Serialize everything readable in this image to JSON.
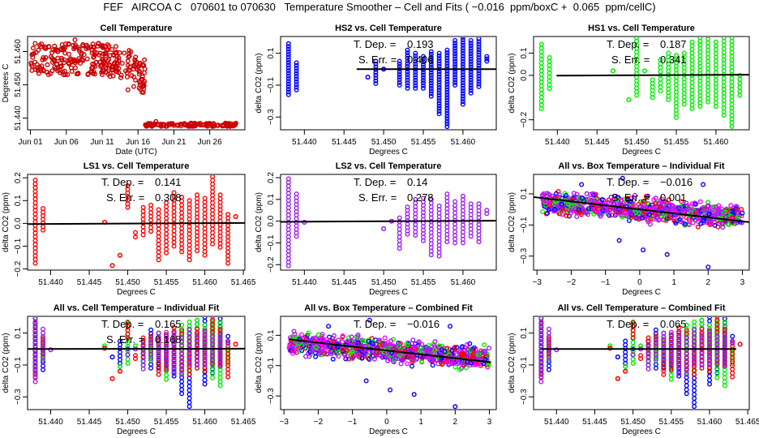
{
  "title": "FEF   AIRCOA C   070601 to 070630   Temperature Smoother – Cell and Fits ( −0.016  ppm/boxC +  0.065  ppm/cellC)",
  "colors": {
    "red": "#ff0000",
    "dark_red": "#cc0000",
    "blue": "#0000ff",
    "green": "#00ee00",
    "purple": "#a020f0",
    "magenta": "#ff00ff",
    "fit_line": "#000000"
  },
  "chart_data": [
    {
      "id": "cell-temperature",
      "type": "scatter",
      "title": "Cell Temperature",
      "xlabel": "Date (UTC)",
      "ylabel": "Degrees C",
      "x_ticks": [
        "Jun 01",
        "Jun 06",
        "Jun 11",
        "Jun 16",
        "Jun 21",
        "Jun 26"
      ],
      "x_tick_days": [
        1,
        6,
        11,
        16,
        21,
        26
      ],
      "xlim": [
        0.6,
        30.9
      ],
      "y_ticks": [
        "51.440",
        "51.450",
        "51.460"
      ],
      "y_tick_values": [
        51.44,
        51.45,
        51.46
      ],
      "ylim": [
        51.4365,
        51.4645
      ],
      "color": "red",
      "segments": [
        {
          "day_start": 1.0,
          "day_end": 16.0,
          "y_low": 51.453,
          "y_high": 51.4625,
          "trend": "flat-then-drop"
        },
        {
          "day_start": 16.0,
          "day_end": 17.0,
          "y_low": 51.4475,
          "y_high": 51.4575
        },
        {
          "day_start": 17.0,
          "day_end": 29.8,
          "y_low": 51.4375,
          "y_high": 51.4385
        }
      ],
      "outliers": [
        [
          14.6,
          51.4485
        ],
        [
          15.4,
          51.4495
        ],
        [
          12.1,
          51.4525
        ],
        [
          18.5,
          51.439
        ],
        [
          28.2,
          51.4385
        ],
        [
          7.2,
          51.4635
        ]
      ]
    },
    {
      "id": "hs2-vs-cell",
      "type": "scatter",
      "title": "HS2 vs. Cell Temperature",
      "xlabel": "Degrees C",
      "ylabel": "delta CO2 (ppm)",
      "x_ticks": [
        "51.440",
        "51.445",
        "51.450",
        "51.455",
        "51.460"
      ],
      "x_tick_values": [
        51.44,
        51.445,
        51.45,
        51.455,
        51.46
      ],
      "xlim": [
        51.437,
        51.4642
      ],
      "y_ticks": [
        "−0.3",
        "−0.1",
        "0.1"
      ],
      "y_tick_values": [
        -0.3,
        -0.1,
        0.1
      ],
      "ylim": [
        -0.38,
        0.205
      ],
      "color": "blue",
      "t_dep": "0.193",
      "s_err": "0.406",
      "fit": {
        "slope_label": "0.193",
        "x_range": [
          51.4466,
          51.4642
        ],
        "y_range": [
          0.0,
          0.0
        ]
      },
      "columns": [
        {
          "x": 51.438,
          "y_min": -0.16,
          "y_max": 0.16
        },
        {
          "x": 51.439,
          "y_min": -0.13,
          "y_max": 0.04
        },
        {
          "x": 51.448,
          "y_min": -0.05,
          "y_max": -0.05
        },
        {
          "x": 51.449,
          "y_min": -0.09,
          "y_max": 0.05
        },
        {
          "x": 51.45,
          "y_min": 0.0,
          "y_max": 0.0
        },
        {
          "x": 51.452,
          "y_min": -0.1,
          "y_max": 0.05
        },
        {
          "x": 51.453,
          "y_min": -0.12,
          "y_max": 0.12
        },
        {
          "x": 51.454,
          "y_min": -0.12,
          "y_max": 0.1
        },
        {
          "x": 51.455,
          "y_min": -0.12,
          "y_max": 0.08
        },
        {
          "x": 51.456,
          "y_min": -0.17,
          "y_max": 0.11
        },
        {
          "x": 51.457,
          "y_min": -0.28,
          "y_max": 0.1
        },
        {
          "x": 51.458,
          "y_min": -0.36,
          "y_max": 0.12
        },
        {
          "x": 51.459,
          "y_min": -0.1,
          "y_max": 0.18
        },
        {
          "x": 51.46,
          "y_min": -0.22,
          "y_max": 0.2
        },
        {
          "x": 51.461,
          "y_min": -0.15,
          "y_max": 0.18
        },
        {
          "x": 51.462,
          "y_min": -0.11,
          "y_max": 0.19
        },
        {
          "x": 51.463,
          "y_min": 0.05,
          "y_max": 0.08
        }
      ]
    },
    {
      "id": "hs1-vs-cell",
      "type": "scatter",
      "title": "HS1 vs. Cell Temperature",
      "xlabel": "Degrees C",
      "ylabel": "delta CO2 (ppm)",
      "x_ticks": [
        "51.440",
        "51.445",
        "51.450",
        "51.455",
        "51.460"
      ],
      "x_tick_values": [
        51.44,
        51.445,
        51.45,
        51.455,
        51.46
      ],
      "xlim": [
        51.437,
        51.4642
      ],
      "y_ticks": [
        "−0.2",
        "0.0",
        "0.1"
      ],
      "y_tick_values": [
        -0.2,
        0.0,
        0.1
      ],
      "ylim": [
        -0.245,
        0.175
      ],
      "color": "green",
      "t_dep": "0.187",
      "s_err": "0.341",
      "fit": {
        "slope_label": "0.187",
        "x_range": [
          51.4399,
          51.4642
        ],
        "y_range": [
          -0.001,
          0.003
        ]
      },
      "columns": [
        {
          "x": 51.438,
          "y_min": -0.15,
          "y_max": 0.14
        },
        {
          "x": 51.439,
          "y_min": -0.06,
          "y_max": 0.08
        },
        {
          "x": 51.447,
          "y_min": 0.02,
          "y_max": 0.02
        },
        {
          "x": 51.449,
          "y_min": -0.11,
          "y_max": -0.11
        },
        {
          "x": 51.45,
          "y_min": -0.09,
          "y_max": 0.17
        },
        {
          "x": 51.451,
          "y_min": 0.02,
          "y_max": 0.02
        },
        {
          "x": 51.452,
          "y_min": -0.1,
          "y_max": -0.02
        },
        {
          "x": 51.453,
          "y_min": -0.07,
          "y_max": 0.07
        },
        {
          "x": 51.454,
          "y_min": -0.11,
          "y_max": 0.1
        },
        {
          "x": 51.455,
          "y_min": -0.19,
          "y_max": 0.09
        },
        {
          "x": 51.456,
          "y_min": -0.13,
          "y_max": 0.1
        },
        {
          "x": 51.457,
          "y_min": -0.15,
          "y_max": 0.15
        },
        {
          "x": 51.458,
          "y_min": -0.14,
          "y_max": 0.17
        },
        {
          "x": 51.459,
          "y_min": -0.12,
          "y_max": 0.18
        },
        {
          "x": 51.46,
          "y_min": -0.14,
          "y_max": 0.15
        },
        {
          "x": 51.461,
          "y_min": -0.18,
          "y_max": 0.17
        },
        {
          "x": 51.462,
          "y_min": -0.23,
          "y_max": 0.17
        },
        {
          "x": 51.463,
          "y_min": -0.09,
          "y_max": 0.0
        }
      ]
    },
    {
      "id": "ls1-vs-cell",
      "type": "scatter",
      "title": "LS1 vs. Cell Temperature",
      "xlabel": "Degrees C",
      "ylabel": "delta CO2 (ppm)",
      "x_ticks": [
        "51.440",
        "51.445",
        "51.450",
        "51.455",
        "51.460",
        "51.465"
      ],
      "x_tick_values": [
        51.44,
        51.445,
        51.45,
        51.455,
        51.46,
        51.465
      ],
      "xlim": [
        51.437,
        51.4652
      ],
      "y_ticks": [
        "−0.2",
        "−0.1",
        "0.0",
        "0.1",
        "0.2"
      ],
      "y_tick_values": [
        -0.2,
        -0.1,
        0.0,
        0.1,
        0.2
      ],
      "ylim": [
        -0.205,
        0.215
      ],
      "color": "red",
      "t_dep": "0.141",
      "s_err": "0.308",
      "fit": {
        "slope_label": "0.141",
        "x_range": [
          51.437,
          51.4652
        ],
        "y_range": [
          -0.003,
          0.002
        ]
      },
      "columns": [
        {
          "x": 51.438,
          "y_min": -0.175,
          "y_max": 0.19
        },
        {
          "x": 51.439,
          "y_min": -0.03,
          "y_max": 0.065
        },
        {
          "x": 51.447,
          "y_min": 0.005,
          "y_max": 0.005
        },
        {
          "x": 51.448,
          "y_min": -0.185,
          "y_max": -0.185
        },
        {
          "x": 51.449,
          "y_min": -0.14,
          "y_max": -0.14
        },
        {
          "x": 51.45,
          "y_min": 0.07,
          "y_max": 0.165
        },
        {
          "x": 51.451,
          "y_min": -0.06,
          "y_max": -0.04
        },
        {
          "x": 51.452,
          "y_min": -0.05,
          "y_max": 0.07
        },
        {
          "x": 51.453,
          "y_min": -0.035,
          "y_max": 0.08
        },
        {
          "x": 51.454,
          "y_min": -0.16,
          "y_max": 0.06
        },
        {
          "x": 51.455,
          "y_min": -0.13,
          "y_max": 0.09
        },
        {
          "x": 51.456,
          "y_min": -0.1,
          "y_max": 0.135
        },
        {
          "x": 51.457,
          "y_min": -0.125,
          "y_max": 0.115
        },
        {
          "x": 51.458,
          "y_min": -0.16,
          "y_max": 0.1
        },
        {
          "x": 51.459,
          "y_min": -0.12,
          "y_max": 0.125
        },
        {
          "x": 51.46,
          "y_min": -0.14,
          "y_max": 0.11
        },
        {
          "x": 51.461,
          "y_min": -0.09,
          "y_max": 0.205
        },
        {
          "x": 51.462,
          "y_min": -0.105,
          "y_max": 0.125
        },
        {
          "x": 51.463,
          "y_min": -0.175,
          "y_max": 0.04
        },
        {
          "x": 51.464,
          "y_min": 0.03,
          "y_max": 0.03
        }
      ]
    },
    {
      "id": "ls2-vs-cell",
      "type": "scatter",
      "title": "LS2 vs. Cell Temperature",
      "xlabel": "Degrees C",
      "ylabel": "delta CO2 (ppm)",
      "x_ticks": [
        "51.440",
        "51.445",
        "51.450",
        "51.455",
        "51.460"
      ],
      "x_tick_values": [
        51.44,
        51.445,
        51.45,
        51.455,
        51.46
      ],
      "xlim": [
        51.437,
        51.4642
      ],
      "y_ticks": [
        "−0.2",
        "−0.1",
        "0.0",
        "0.1",
        "0.2"
      ],
      "y_tick_values": [
        -0.2,
        -0.1,
        0.0,
        0.1,
        0.2
      ],
      "ylim": [
        -0.225,
        0.215
      ],
      "color": "purple",
      "t_dep": "0.14",
      "s_err": "0.278",
      "fit": {
        "slope_label": "0.14",
        "x_range": [
          51.437,
          51.4642
        ],
        "y_range": [
          -0.003,
          0.002
        ]
      },
      "columns": [
        {
          "x": 51.438,
          "y_min": -0.205,
          "y_max": 0.195
        },
        {
          "x": 51.439,
          "y_min": -0.07,
          "y_max": 0.125
        },
        {
          "x": 51.44,
          "y_min": -0.005,
          "y_max": -0.005
        },
        {
          "x": 51.45,
          "y_min": -0.035,
          "y_max": -0.035
        },
        {
          "x": 51.451,
          "y_min": 0.0,
          "y_max": 0.0
        },
        {
          "x": 51.452,
          "y_min": -0.125,
          "y_max": 0.015
        },
        {
          "x": 51.453,
          "y_min": -0.06,
          "y_max": 0.065
        },
        {
          "x": 51.454,
          "y_min": -0.065,
          "y_max": 0.1
        },
        {
          "x": 51.455,
          "y_min": -0.09,
          "y_max": 0.105
        },
        {
          "x": 51.456,
          "y_min": -0.155,
          "y_max": 0.1
        },
        {
          "x": 51.457,
          "y_min": -0.16,
          "y_max": 0.07
        },
        {
          "x": 51.458,
          "y_min": -0.095,
          "y_max": 0.125
        },
        {
          "x": 51.459,
          "y_min": -0.1,
          "y_max": 0.09
        },
        {
          "x": 51.46,
          "y_min": -0.1,
          "y_max": 0.115
        },
        {
          "x": 51.461,
          "y_min": -0.07,
          "y_max": 0.08
        },
        {
          "x": 51.462,
          "y_min": -0.095,
          "y_max": 0.08
        },
        {
          "x": 51.463,
          "y_min": 0.035,
          "y_max": 0.05
        }
      ]
    },
    {
      "id": "all-vs-box-individual",
      "type": "scatter",
      "title": "All vs. Box Temperature – Individual Fit",
      "xlabel": "Degrees C",
      "ylabel": "delta CO2 (ppm)",
      "x_ticks": [
        "−3",
        "−2",
        "−1",
        "0",
        "1",
        "2",
        "3"
      ],
      "x_tick_values": [
        -3,
        -2,
        -1,
        0,
        1,
        2,
        3
      ],
      "xlim": [
        -3.1,
        3.2
      ],
      "y_ticks": [
        "−0.3",
        "−0.1",
        "0.1"
      ],
      "y_tick_values": [
        -0.3,
        -0.1,
        0.1
      ],
      "ylim": [
        -0.39,
        0.225
      ],
      "series_colors": [
        "blue",
        "green",
        "red",
        "purple"
      ],
      "t_dep": "−0.016",
      "s_err": "0.001",
      "fit": {
        "slope": -0.016,
        "intercept": 0.0,
        "x_range": [
          -3.1,
          3.2
        ]
      },
      "cloud": {
        "x_range": [
          -2.85,
          3.0
        ],
        "y_center_at_min_x": 0.045,
        "y_center_at_max_x": -0.05,
        "band_half_width": 0.08
      },
      "outliers": [
        [
          0.8,
          -0.29
        ],
        [
          2.0,
          -0.37
        ],
        [
          0.1,
          -0.26
        ],
        [
          -0.6,
          -0.2
        ],
        [
          1.85,
          0.16
        ],
        [
          -1.7,
          0.16
        ],
        [
          -0.5,
          0.2
        ]
      ]
    },
    {
      "id": "all-vs-cell-individual",
      "type": "scatter",
      "title": "All vs. Cell Temperature – Individual Fit",
      "xlabel": "Degrees C",
      "ylabel": "delta CO2 (ppm)",
      "x_ticks": [
        "51.440",
        "51.445",
        "51.450",
        "51.455",
        "51.460",
        "51.465"
      ],
      "x_tick_values": [
        51.44,
        51.445,
        51.45,
        51.455,
        51.46,
        51.465
      ],
      "xlim": [
        51.437,
        51.4652
      ],
      "y_ticks": [
        "−0.3",
        "−0.1",
        "0.1"
      ],
      "y_tick_values": [
        -0.3,
        -0.1,
        0.1
      ],
      "ylim": [
        -0.38,
        0.205
      ],
      "series_colors": [
        "blue",
        "green",
        "red",
        "purple"
      ],
      "t_dep": "0.165",
      "s_err": "0.168",
      "fit": {
        "slope_label": "0.165",
        "x_range": [
          51.437,
          51.4652
        ],
        "y_range": [
          0.0,
          0.002
        ]
      }
    },
    {
      "id": "all-vs-box-combined",
      "type": "scatter",
      "title": "All vs. Box Temperature – Combined Fit",
      "xlabel": "Degrees C",
      "ylabel": "delta CO2 (ppm)",
      "x_ticks": [
        "−3",
        "−2",
        "−1",
        "0",
        "1",
        "2",
        "3"
      ],
      "x_tick_values": [
        -3,
        -2,
        -1,
        0,
        1,
        2,
        3
      ],
      "xlim": [
        -3.1,
        3.2
      ],
      "y_ticks": [
        "−0.3",
        "−0.1",
        "0.1"
      ],
      "y_tick_values": [
        -0.3,
        -0.1,
        0.1
      ],
      "ylim": [
        -0.39,
        0.225
      ],
      "series_colors": [
        "blue",
        "green",
        "red",
        "purple"
      ],
      "t_dep": "−0.016",
      "fit": {
        "slope": -0.016,
        "intercept": 0.0,
        "x_range": [
          -2.85,
          3.05
        ]
      },
      "cloud": {
        "x_range": [
          -2.85,
          3.0
        ],
        "y_center_at_min_x": 0.045,
        "y_center_at_max_x": -0.05,
        "band_half_width": 0.08
      },
      "outliers": [
        [
          0.8,
          -0.29
        ],
        [
          2.0,
          -0.37
        ],
        [
          0.1,
          -0.26
        ],
        [
          -0.6,
          -0.2
        ],
        [
          1.85,
          0.16
        ],
        [
          -1.7,
          0.16
        ],
        [
          -0.5,
          0.2
        ]
      ]
    },
    {
      "id": "all-vs-cell-combined",
      "type": "scatter",
      "title": "All vs. Cell Temperature – Combined Fit",
      "xlabel": "Degrees C",
      "ylabel": "delta CO2 (ppm)",
      "x_ticks": [
        "51.440",
        "51.445",
        "51.450",
        "51.455",
        "51.460",
        "51.465"
      ],
      "x_tick_values": [
        51.44,
        51.445,
        51.45,
        51.455,
        51.46,
        51.465
      ],
      "xlim": [
        51.437,
        51.4652
      ],
      "y_ticks": [
        "−0.3",
        "−0.1",
        "0.1"
      ],
      "y_tick_values": [
        -0.3,
        -0.1,
        0.1
      ],
      "ylim": [
        -0.38,
        0.205
      ],
      "series_colors": [
        "blue",
        "green",
        "red",
        "purple"
      ],
      "t_dep": "0.065",
      "fit": {
        "slope_label": "0.065",
        "x_range": [
          51.438,
          51.4635
        ],
        "y_range": [
          0.0,
          0.0
        ]
      }
    }
  ]
}
